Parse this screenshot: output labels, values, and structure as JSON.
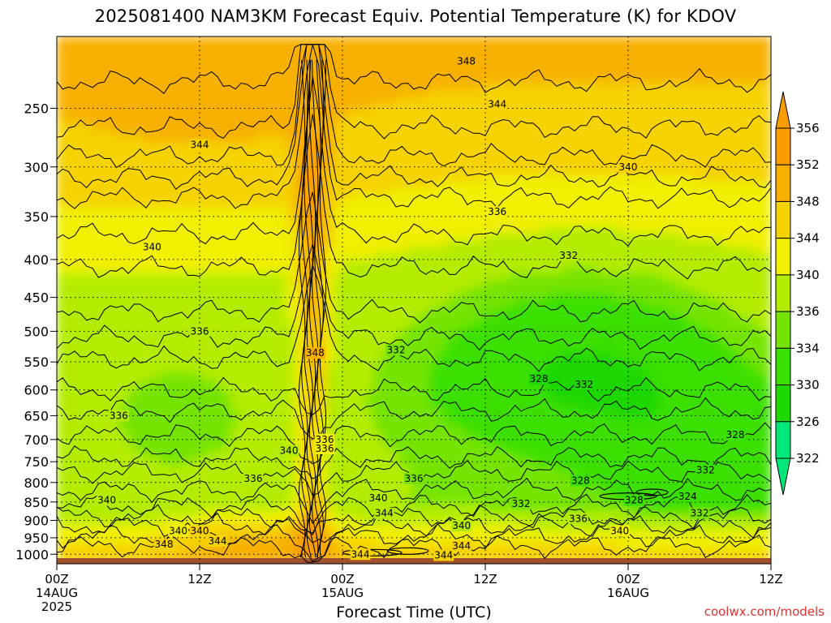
{
  "title": "2025081400 NAM3KM Forecast Equiv. Potential Temperature (K) for KDOV",
  "watermark": "coolwx.com/models",
  "chart_data": {
    "type": "heatmap",
    "title": "2025081400 NAM3KM Forecast Equiv. Potential Temperature (K) for KDOV",
    "xlabel": "Forecast Time (UTC)",
    "ylabel": "",
    "x_range_hours": [
      0,
      60
    ],
    "y_range_hpa": [
      1030,
      200
    ],
    "y_scale": "log",
    "y_ticks": [
      250,
      300,
      350,
      400,
      450,
      500,
      550,
      600,
      650,
      700,
      750,
      800,
      850,
      900,
      950,
      1000
    ],
    "x_ticks": [
      {
        "hour": 0,
        "lines": [
          "00Z",
          "14AUG",
          "2025"
        ]
      },
      {
        "hour": 12,
        "lines": [
          "12Z"
        ]
      },
      {
        "hour": 24,
        "lines": [
          "00Z",
          "15AUG"
        ]
      },
      {
        "hour": 36,
        "lines": [
          "12Z"
        ]
      },
      {
        "hour": 48,
        "lines": [
          "00Z",
          "16AUG"
        ]
      },
      {
        "hour": 60,
        "lines": [
          "12Z"
        ]
      }
    ],
    "grid": true,
    "colorbar": {
      "position": "right",
      "ticks": [
        356,
        352,
        348,
        344,
        340,
        336,
        334,
        330,
        326,
        322
      ],
      "levels": [
        322,
        326,
        330,
        334,
        336,
        340,
        344,
        348,
        352,
        356
      ],
      "colors": [
        "#00e87a",
        "#1ed800",
        "#3ae000",
        "#74e400",
        "#b4ec00",
        "#f0f000",
        "#f5d200",
        "#f8b000",
        "#f99d00"
      ]
    },
    "contour_labels": [
      {
        "value": 348,
        "hour": 34.4,
        "p": 216
      },
      {
        "value": 344,
        "hour": 37.0,
        "p": 247
      },
      {
        "value": 344,
        "hour": 12.0,
        "p": 280
      },
      {
        "value": 340,
        "hour": 48.0,
        "p": 300
      },
      {
        "value": 336,
        "hour": 37.0,
        "p": 345
      },
      {
        "value": 340,
        "hour": 8.0,
        "p": 385
      },
      {
        "value": 332,
        "hour": 43.0,
        "p": 395
      },
      {
        "value": 336,
        "hour": 12.0,
        "p": 500
      },
      {
        "value": 348,
        "hour": 21.7,
        "p": 535
      },
      {
        "value": 332,
        "hour": 28.5,
        "p": 530
      },
      {
        "value": 328,
        "hour": 40.5,
        "p": 580
      },
      {
        "value": 332,
        "hour": 44.3,
        "p": 590
      },
      {
        "value": 336,
        "hour": 5.2,
        "p": 650
      },
      {
        "value": 336,
        "hour": 22.5,
        "p": 700
      },
      {
        "value": 336,
        "hour": 22.5,
        "p": 720
      },
      {
        "value": 340,
        "hour": 19.5,
        "p": 725
      },
      {
        "value": 328,
        "hour": 57.0,
        "p": 690
      },
      {
        "value": 332,
        "hour": 54.5,
        "p": 770
      },
      {
        "value": 336,
        "hour": 16.5,
        "p": 790
      },
      {
        "value": 336,
        "hour": 30.0,
        "p": 790
      },
      {
        "value": 328,
        "hour": 44.0,
        "p": 795
      },
      {
        "value": 340,
        "hour": 4.2,
        "p": 845
      },
      {
        "value": 340,
        "hour": 27.0,
        "p": 840
      },
      {
        "value": 324,
        "hour": 53.0,
        "p": 835
      },
      {
        "value": 328,
        "hour": 48.5,
        "p": 845
      },
      {
        "value": 332,
        "hour": 39.0,
        "p": 855
      },
      {
        "value": 344,
        "hour": 27.5,
        "p": 880
      },
      {
        "value": 332,
        "hour": 54.0,
        "p": 880
      },
      {
        "value": 336,
        "hour": 43.8,
        "p": 895
      },
      {
        "value": 340,
        "hour": 10.2,
        "p": 930
      },
      {
        "value": 340,
        "hour": 12.0,
        "p": 930
      },
      {
        "value": 340,
        "hour": 34.0,
        "p": 915
      },
      {
        "value": 340,
        "hour": 47.3,
        "p": 930
      },
      {
        "value": 344,
        "hour": 13.5,
        "p": 960
      },
      {
        "value": 348,
        "hour": 9.0,
        "p": 970
      },
      {
        "value": 344,
        "hour": 34.0,
        "p": 975
      },
      {
        "value": 344,
        "hour": 25.5,
        "p": 1000
      },
      {
        "value": 344,
        "hour": 32.5,
        "p": 1003
      }
    ]
  }
}
